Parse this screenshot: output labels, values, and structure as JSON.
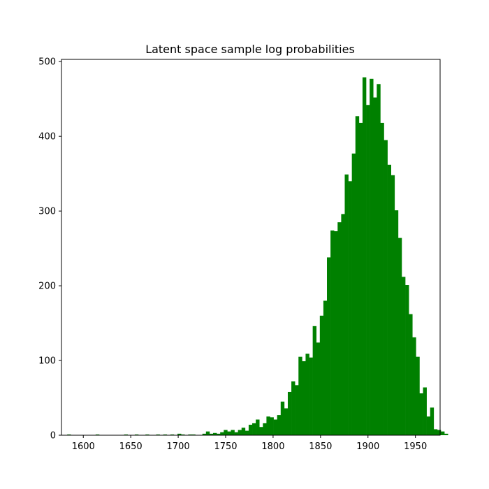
{
  "chart_data": {
    "type": "bar",
    "title": "Latent space sample log probabilities",
    "xlabel": "",
    "ylabel": "",
    "color": "#008000",
    "xlim": [
      1577,
      1976
    ],
    "ylim": [
      0,
      503
    ],
    "bin_start": 1583,
    "bin_width": 3.75,
    "counts": [
      1,
      0,
      0,
      0,
      0,
      0,
      0,
      0,
      1,
      0,
      0,
      0,
      0,
      0,
      0,
      0,
      1,
      0,
      0,
      1,
      0,
      0,
      1,
      0,
      0,
      1,
      0,
      1,
      0,
      1,
      0,
      2,
      1,
      0,
      1,
      1,
      0,
      0,
      2,
      5,
      2,
      3,
      2,
      4,
      7,
      5,
      7,
      4,
      7,
      10,
      6,
      14,
      16,
      21,
      11,
      16,
      25,
      24,
      21,
      27,
      45,
      36,
      58,
      72,
      67,
      105,
      99,
      109,
      104,
      146,
      124,
      160,
      180,
      238,
      274,
      273,
      285,
      296,
      349,
      340,
      377,
      427,
      418,
      479,
      442,
      477,
      452,
      470,
      418,
      395,
      362,
      348,
      301,
      264,
      212,
      201,
      162,
      131,
      105,
      56,
      64,
      25,
      37,
      8,
      7,
      5,
      2
    ],
    "x_ticks": [
      1600,
      1650,
      1700,
      1750,
      1800,
      1850,
      1900,
      1950
    ],
    "y_ticks": [
      0,
      100,
      200,
      300,
      400,
      500
    ]
  }
}
